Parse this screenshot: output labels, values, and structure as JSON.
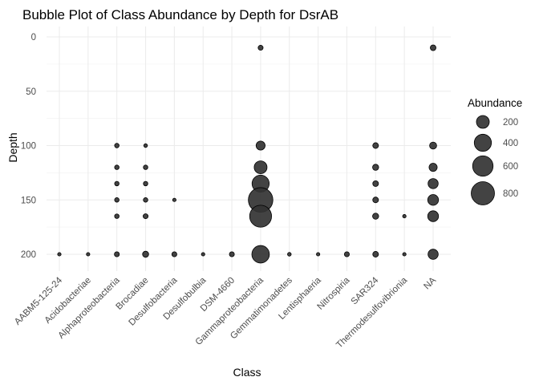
{
  "chart_data": {
    "type": "scatter",
    "subtype": "bubble",
    "title": "Bubble Plot of Class Abundance by Depth for DsrAB",
    "xlabel": "Class",
    "ylabel": "Depth",
    "y_reversed": true,
    "ylim": [
      0,
      220
    ],
    "yticks": [
      0,
      50,
      100,
      150,
      200
    ],
    "grid": true,
    "legend_position": "right",
    "legend_title": "Abundance",
    "legend": [
      {
        "label": "200",
        "value": 200
      },
      {
        "label": "400",
        "value": 400
      },
      {
        "label": "600",
        "value": 600
      },
      {
        "label": "800",
        "value": 800
      }
    ],
    "point_color": "#333333",
    "point_border": "#000000",
    "categories": [
      "AABM5-125-24",
      "Acidobacteriae",
      "Alphaproteobacteria",
      "Brocadiae",
      "Desulfobacteria",
      "Desulfobulbia",
      "DSM-4660",
      "Gammaproteobacteria",
      "Gemmatimonadetes",
      "Lentisphaeria",
      "Nitrospiria",
      "SAR324",
      "Thermodesulfovibrionia",
      "NA"
    ],
    "points": [
      {
        "x": "AABM5-125-24",
        "y": 200,
        "size": 2
      },
      {
        "x": "Acidobacteriae",
        "y": 200,
        "size": 2
      },
      {
        "x": "Alphaproteobacteria",
        "y": 100,
        "size": 8
      },
      {
        "x": "Alphaproteobacteria",
        "y": 120,
        "size": 8
      },
      {
        "x": "Alphaproteobacteria",
        "y": 135,
        "size": 8
      },
      {
        "x": "Alphaproteobacteria",
        "y": 150,
        "size": 8
      },
      {
        "x": "Alphaproteobacteria",
        "y": 165,
        "size": 8
      },
      {
        "x": "Alphaproteobacteria",
        "y": 200,
        "size": 12
      },
      {
        "x": "Brocadiae",
        "y": 100,
        "size": 3
      },
      {
        "x": "Brocadiae",
        "y": 120,
        "size": 8
      },
      {
        "x": "Brocadiae",
        "y": 135,
        "size": 8
      },
      {
        "x": "Brocadiae",
        "y": 150,
        "size": 8
      },
      {
        "x": "Brocadiae",
        "y": 165,
        "size": 12
      },
      {
        "x": "Brocadiae",
        "y": 200,
        "size": 25
      },
      {
        "x": "Desulfobacteria",
        "y": 150,
        "size": 2
      },
      {
        "x": "Desulfobacteria",
        "y": 200,
        "size": 12
      },
      {
        "x": "Desulfobulbia",
        "y": 200,
        "size": 2
      },
      {
        "x": "DSM-4660",
        "y": 200,
        "size": 12
      },
      {
        "x": "Gammaproteobacteria",
        "y": 10,
        "size": 12
      },
      {
        "x": "Gammaproteobacteria",
        "y": 100,
        "size": 80
      },
      {
        "x": "Gammaproteobacteria",
        "y": 120,
        "size": 200
      },
      {
        "x": "Gammaproteobacteria",
        "y": 135,
        "size": 400
      },
      {
        "x": "Gammaproteobacteria",
        "y": 150,
        "size": 900
      },
      {
        "x": "Gammaproteobacteria",
        "y": 165,
        "size": 700
      },
      {
        "x": "Gammaproteobacteria",
        "y": 200,
        "size": 420
      },
      {
        "x": "Gemmatimonadetes",
        "y": 200,
        "size": 3
      },
      {
        "x": "Lentisphaeria",
        "y": 200,
        "size": 2
      },
      {
        "x": "Nitrospiria",
        "y": 200,
        "size": 12
      },
      {
        "x": "SAR324",
        "y": 100,
        "size": 20
      },
      {
        "x": "SAR324",
        "y": 120,
        "size": 25
      },
      {
        "x": "SAR324",
        "y": 135,
        "size": 20
      },
      {
        "x": "SAR324",
        "y": 150,
        "size": 20
      },
      {
        "x": "SAR324",
        "y": 165,
        "size": 25
      },
      {
        "x": "SAR324",
        "y": 200,
        "size": 20
      },
      {
        "x": "Thermodesulfovibrionia",
        "y": 165,
        "size": 2
      },
      {
        "x": "Thermodesulfovibrionia",
        "y": 200,
        "size": 2
      },
      {
        "x": "NA",
        "y": 10,
        "size": 20
      },
      {
        "x": "NA",
        "y": 100,
        "size": 40
      },
      {
        "x": "NA",
        "y": 120,
        "size": 60
      },
      {
        "x": "NA",
        "y": 135,
        "size": 110
      },
      {
        "x": "NA",
        "y": 150,
        "size": 130
      },
      {
        "x": "NA",
        "y": 165,
        "size": 130
      },
      {
        "x": "NA",
        "y": 200,
        "size": 110
      }
    ]
  }
}
